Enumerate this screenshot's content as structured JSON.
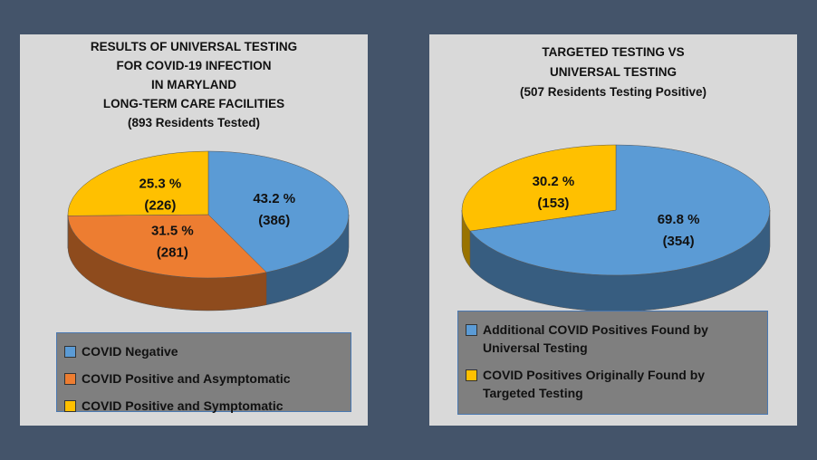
{
  "chart_data": [
    {
      "type": "pie",
      "title": [
        "RESULTS OF UNIVERSAL TESTING",
        "FOR COVID-19 INFECTION",
        "IN MARYLAND",
        "LONG-TERM CARE FACILITIES"
      ],
      "subtitle": "(893 Residents Tested)",
      "categories": [
        "COVID Negative",
        "COVID Positive and Asymptomatic",
        "COVID Positive and Symptomatic"
      ],
      "values": [
        43.2,
        31.5,
        25.3
      ],
      "value_labels": [
        "43.2 %",
        "31.5 %",
        "25.3 %"
      ],
      "count_labels": [
        "(386)",
        "(281)",
        "(226)"
      ],
      "colors": [
        "#5b9bd5",
        "#ed7d31",
        "#ffc000"
      ]
    },
    {
      "type": "pie",
      "title": [
        "TARGETED TESTING VS",
        "UNIVERSAL TESTING"
      ],
      "subtitle": "(507 Residents Testing Positive)",
      "categories": [
        "Additional COVID Positives Found by Universal Testing",
        "COVID Positives Originally Found by Targeted Testing"
      ],
      "values": [
        69.8,
        30.2
      ],
      "value_labels": [
        "69.8 %",
        "30.2 %"
      ],
      "count_labels": [
        "(354)",
        "(153)"
      ],
      "colors": [
        "#5b9bd5",
        "#ffc000"
      ]
    }
  ]
}
